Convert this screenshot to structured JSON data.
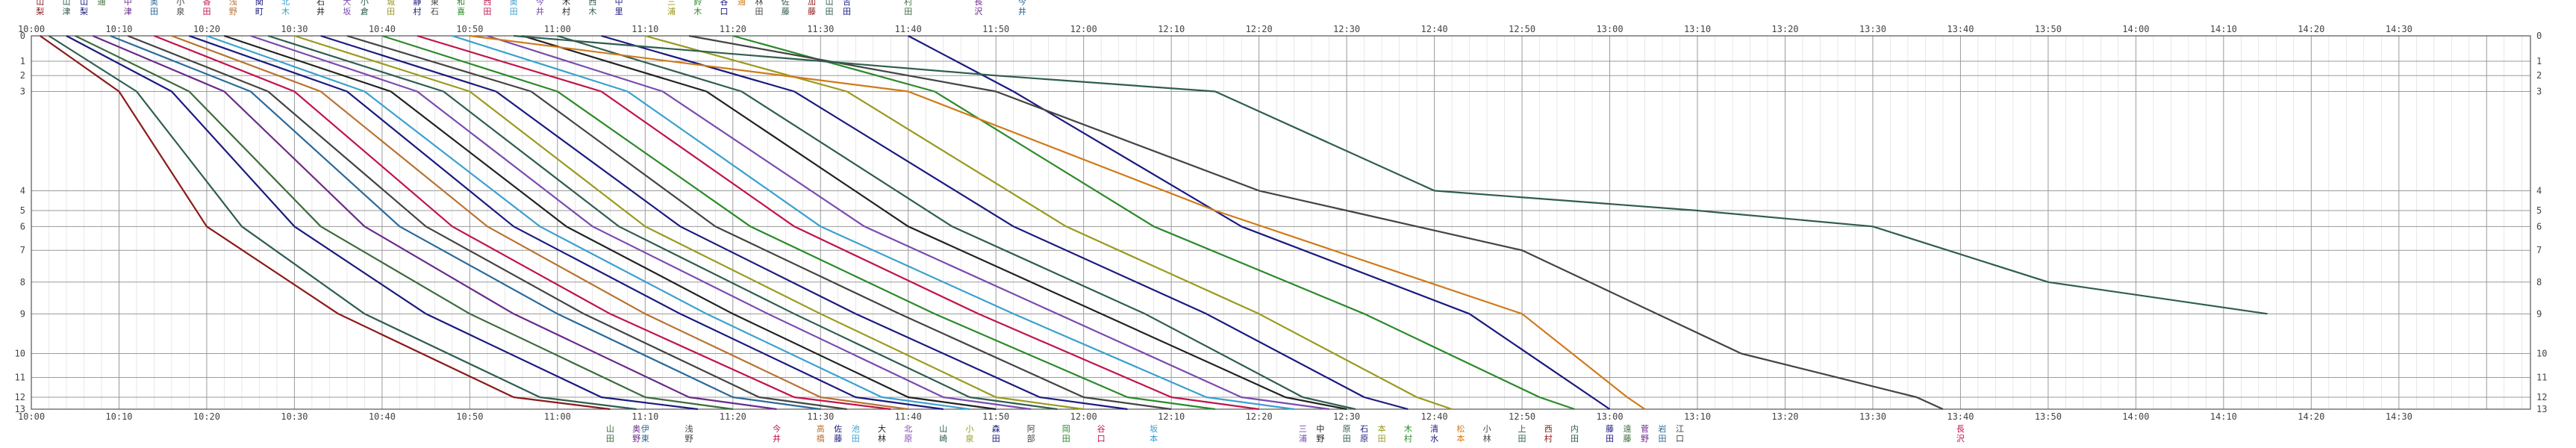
{
  "chart_data": {
    "type": "line",
    "x_axis": {
      "start": "10:00",
      "end": "14:45",
      "major_step_min": 10,
      "minor_step_min": 2,
      "tick_labels": [
        "10:00",
        "10:10",
        "10:20",
        "10:30",
        "10:40",
        "10:50",
        "11:00",
        "11:10",
        "11:20",
        "11:30",
        "11:40",
        "11:50",
        "12:00",
        "12:10",
        "12:20",
        "12:30",
        "12:40",
        "12:50",
        "13:00",
        "13:10",
        "13:20",
        "13:30",
        "13:40",
        "13:50",
        "14:00",
        "14:10",
        "14:20",
        "14:30"
      ]
    },
    "stations": [
      "0",
      "1",
      "2",
      "3",
      "4",
      "5",
      "6",
      "7",
      "8",
      "9",
      "10",
      "11",
      "12",
      "13"
    ],
    "station_km": [
      0,
      3.2,
      5.0,
      7.0,
      19.5,
      22.0,
      24.0,
      27.0,
      31.0,
      35.0,
      40.0,
      43.0,
      45.5,
      47.0
    ],
    "grid": true,
    "series": [
      {
        "color": "#8b1a1a",
        "points": [
          [
            "10:01",
            0
          ],
          [
            "10:10",
            3
          ],
          [
            "10:20",
            6
          ],
          [
            "10:35",
            9
          ],
          [
            "10:55",
            12
          ],
          [
            "11:06",
            13
          ]
        ]
      },
      {
        "color": "#2f5d50",
        "points": [
          [
            "10:02",
            0
          ],
          [
            "10:12",
            3
          ],
          [
            "10:24",
            6
          ],
          [
            "10:38",
            9
          ],
          [
            "10:58",
            12
          ],
          [
            "11:09",
            13
          ]
        ]
      },
      {
        "color": "#1a1a80",
        "points": [
          [
            "10:04",
            0
          ],
          [
            "10:16",
            3
          ],
          [
            "10:30",
            6
          ],
          [
            "10:45",
            9
          ],
          [
            "11:05",
            12
          ],
          [
            "11:16",
            13
          ]
        ]
      },
      {
        "color": "#3d6b3d",
        "points": [
          [
            "10:05",
            0
          ],
          [
            "10:18",
            3
          ],
          [
            "10:33",
            6
          ],
          [
            "10:50",
            9
          ],
          [
            "11:10",
            12
          ],
          [
            "11:20",
            13
          ]
        ]
      },
      {
        "color": "#6a2a8a",
        "points": [
          [
            "10:07",
            0
          ],
          [
            "10:22",
            3
          ],
          [
            "10:38",
            6
          ],
          [
            "10:55",
            9
          ],
          [
            "11:15",
            12
          ],
          [
            "11:25",
            13
          ]
        ]
      },
      {
        "color": "#2a6a9a",
        "points": [
          [
            "10:09",
            0
          ],
          [
            "10:25",
            3
          ],
          [
            "10:42",
            6
          ],
          [
            "11:00",
            9
          ],
          [
            "11:20",
            12
          ],
          [
            "11:30",
            13
          ]
        ]
      },
      {
        "color": "#444444",
        "points": [
          [
            "10:11",
            0
          ],
          [
            "10:27",
            3
          ],
          [
            "10:45",
            6
          ],
          [
            "11:03",
            9
          ],
          [
            "11:23",
            12
          ],
          [
            "11:33",
            13
          ]
        ]
      },
      {
        "color": "#c0144a",
        "points": [
          [
            "10:14",
            0
          ],
          [
            "10:30",
            3
          ],
          [
            "10:48",
            6
          ],
          [
            "11:06",
            9
          ],
          [
            "11:27",
            12
          ],
          [
            "11:38",
            13
          ]
        ]
      },
      {
        "color": "#b87333",
        "points": [
          [
            "10:16",
            0
          ],
          [
            "10:33",
            3
          ],
          [
            "10:52",
            6
          ],
          [
            "11:10",
            9
          ],
          [
            "11:30",
            12
          ],
          [
            "11:40",
            13
          ]
        ]
      },
      {
        "color": "#1a1a80",
        "points": [
          [
            "10:18",
            0
          ],
          [
            "10:36",
            3
          ],
          [
            "10:55",
            6
          ],
          [
            "11:14",
            9
          ],
          [
            "11:34",
            12
          ],
          [
            "11:44",
            13
          ]
        ]
      },
      {
        "color": "#3aa0d0",
        "points": [
          [
            "10:20",
            0
          ],
          [
            "10:38",
            3
          ],
          [
            "10:58",
            6
          ],
          [
            "11:17",
            9
          ],
          [
            "11:37",
            12
          ],
          [
            "11:47",
            13
          ]
        ]
      },
      {
        "color": "#222222",
        "points": [
          [
            "10:22",
            0
          ],
          [
            "10:41",
            3
          ],
          [
            "11:01",
            6
          ],
          [
            "11:20",
            9
          ],
          [
            "11:40",
            12
          ],
          [
            "11:50",
            13
          ]
        ]
      },
      {
        "color": "#7a4ab0",
        "points": [
          [
            "10:25",
            0
          ],
          [
            "10:44",
            3
          ],
          [
            "11:04",
            6
          ],
          [
            "11:24",
            9
          ],
          [
            "11:44",
            12
          ],
          [
            "11:54",
            13
          ]
        ]
      },
      {
        "color": "#2f5d50",
        "points": [
          [
            "10:27",
            0
          ],
          [
            "10:47",
            3
          ],
          [
            "11:07",
            6
          ],
          [
            "11:27",
            9
          ],
          [
            "11:47",
            12
          ],
          [
            "11:57",
            13
          ]
        ]
      },
      {
        "color": "#9a9a20",
        "points": [
          [
            "10:30",
            0
          ],
          [
            "10:50",
            3
          ],
          [
            "11:10",
            6
          ],
          [
            "11:30",
            9
          ],
          [
            "11:50",
            12
          ],
          [
            "12:00",
            13
          ]
        ]
      },
      {
        "color": "#1a1a80",
        "points": [
          [
            "10:33",
            0
          ],
          [
            "10:53",
            3
          ],
          [
            "11:14",
            6
          ],
          [
            "11:34",
            9
          ],
          [
            "11:55",
            12
          ],
          [
            "12:05",
            13
          ]
        ]
      },
      {
        "color": "#444444",
        "points": [
          [
            "10:36",
            0
          ],
          [
            "10:57",
            3
          ],
          [
            "11:18",
            6
          ],
          [
            "11:39",
            9
          ],
          [
            "12:00",
            12
          ],
          [
            "12:10",
            13
          ]
        ]
      },
      {
        "color": "#2a8a2a",
        "points": [
          [
            "10:40",
            0
          ],
          [
            "11:00",
            3
          ],
          [
            "11:22",
            6
          ],
          [
            "11:43",
            9
          ],
          [
            "12:05",
            12
          ],
          [
            "12:15",
            13
          ]
        ]
      },
      {
        "color": "#c0144a",
        "points": [
          [
            "10:44",
            0
          ],
          [
            "11:05",
            3
          ],
          [
            "11:27",
            6
          ],
          [
            "11:48",
            9
          ],
          [
            "12:10",
            12
          ],
          [
            "12:20",
            13
          ]
        ]
      },
      {
        "color": "#3aa0d0",
        "points": [
          [
            "10:48",
            0
          ],
          [
            "11:08",
            3
          ],
          [
            "11:30",
            6
          ],
          [
            "11:52",
            9
          ],
          [
            "12:14",
            12
          ],
          [
            "12:24",
            13
          ]
        ]
      },
      {
        "color": "#7a4ab0",
        "points": [
          [
            "10:52",
            0
          ],
          [
            "11:12",
            3
          ],
          [
            "11:35",
            6
          ],
          [
            "11:57",
            9
          ],
          [
            "12:18",
            12
          ],
          [
            "12:28",
            13
          ]
        ]
      },
      {
        "color": "#222222",
        "points": [
          [
            "10:56",
            0
          ],
          [
            "11:17",
            3
          ],
          [
            "11:40",
            6
          ],
          [
            "12:02",
            9
          ],
          [
            "12:23",
            12
          ],
          [
            "12:30",
            13
          ]
        ]
      },
      {
        "color": "#2f5d50",
        "points": [
          [
            "11:00",
            0
          ],
          [
            "11:21",
            3
          ],
          [
            "11:45",
            6
          ],
          [
            "12:07",
            9
          ],
          [
            "12:25",
            12
          ],
          [
            "12:31",
            13
          ]
        ]
      },
      {
        "color": "#1a1a80",
        "points": [
          [
            "11:05",
            0
          ],
          [
            "11:27",
            3
          ],
          [
            "11:52",
            6
          ],
          [
            "12:14",
            9
          ],
          [
            "12:32",
            12
          ],
          [
            "12:37",
            13
          ]
        ]
      },
      {
        "color": "#9a9a20",
        "points": [
          [
            "11:10",
            0
          ],
          [
            "11:33",
            3
          ],
          [
            "11:58",
            6
          ],
          [
            "12:20",
            9
          ],
          [
            "12:38",
            12
          ],
          [
            "12:42",
            13
          ]
        ]
      },
      {
        "color": "#2a8a2a",
        "points": [
          [
            "11:20",
            0
          ],
          [
            "11:43",
            3
          ],
          [
            "12:08",
            6
          ],
          [
            "12:32",
            9
          ],
          [
            "12:52",
            12
          ],
          [
            "12:56",
            13
          ]
        ]
      },
      {
        "color": "#1a1a80",
        "points": [
          [
            "11:40",
            0
          ],
          [
            "11:52",
            3
          ],
          [
            "12:18",
            6
          ],
          [
            "12:44",
            9
          ],
          [
            "12:58",
            12
          ],
          [
            "13:00",
            13
          ]
        ]
      },
      {
        "color": "#d07a1a",
        "points": [
          [
            "10:50",
            0
          ],
          [
            "11:40",
            3
          ],
          [
            "12:15",
            5
          ],
          [
            "12:50",
            9
          ],
          [
            "13:02",
            12
          ],
          [
            "13:04",
            13
          ]
        ]
      },
      {
        "color": "#444444",
        "points": [
          [
            "11:15",
            0
          ],
          [
            "11:50",
            3
          ],
          [
            "12:20",
            4
          ],
          [
            "12:30",
            5
          ],
          [
            "12:50",
            7
          ],
          [
            "13:15",
            10
          ],
          [
            "13:35",
            12
          ],
          [
            "13:38",
            13
          ]
        ]
      },
      {
        "color": "#2f5d50",
        "points": [
          [
            "10:55",
            0
          ],
          [
            "11:50",
            2
          ],
          [
            "12:15",
            3
          ],
          [
            "12:40",
            4
          ],
          [
            "13:10",
            5
          ],
          [
            "13:30",
            6
          ],
          [
            "13:50",
            8
          ],
          [
            "14:15",
            9
          ]
        ]
      }
    ]
  },
  "top_labels": [
    {
      "time": "10:01",
      "text": "山梨"
    },
    {
      "time": "10:04",
      "text": "山津"
    },
    {
      "time": "10:06",
      "text": "山梨"
    },
    {
      "time": "10:08",
      "text": "通"
    },
    {
      "time": "10:11",
      "text": "中津"
    },
    {
      "time": "10:14",
      "text": "奥田"
    },
    {
      "time": "10:17",
      "text": "小泉"
    },
    {
      "time": "10:20",
      "text": "香田"
    },
    {
      "time": "10:23",
      "text": "浅野"
    },
    {
      "time": "10:26",
      "text": "関町"
    },
    {
      "time": "10:29",
      "text": "北木"
    },
    {
      "time": "10:33",
      "text": "石井"
    },
    {
      "time": "10:36",
      "text": "大坂"
    },
    {
      "time": "10:38",
      "text": "小倉"
    },
    {
      "time": "10:41",
      "text": "城田"
    },
    {
      "time": "10:44",
      "text": "静村"
    },
    {
      "time": "10:46",
      "text": "東石"
    },
    {
      "time": "10:49",
      "text": "和喜"
    },
    {
      "time": "10:52",
      "text": "西田"
    },
    {
      "time": "10:55",
      "text": "奥田"
    },
    {
      "time": "10:58",
      "text": "今井"
    },
    {
      "time": "11:01",
      "text": "木村"
    },
    {
      "time": "11:04",
      "text": "西木"
    },
    {
      "time": "11:07",
      "text": "中里"
    },
    {
      "time": "11:13",
      "text": "三浦"
    },
    {
      "time": "11:16",
      "text": "鈴木"
    },
    {
      "time": "11:19",
      "text": "谷口"
    },
    {
      "time": "11:21",
      "text": "通"
    },
    {
      "time": "11:23",
      "text": "林田"
    },
    {
      "time": "11:26",
      "text": "佐藤"
    },
    {
      "time": "11:29",
      "text": "加藤"
    },
    {
      "time": "11:31",
      "text": "山田"
    },
    {
      "time": "11:33",
      "text": "吉田"
    },
    {
      "time": "11:40",
      "text": "村田"
    },
    {
      "time": "11:48",
      "text": "長沢"
    },
    {
      "time": "11:53",
      "text": "今井"
    }
  ],
  "bottom_labels": [
    {
      "time": "11:06",
      "text": "山田"
    },
    {
      "time": "11:09",
      "text": "奥野"
    },
    {
      "time": "11:10",
      "text": "伊東"
    },
    {
      "time": "11:15",
      "text": "浅野"
    },
    {
      "time": "11:25",
      "text": "今井"
    },
    {
      "time": "11:30",
      "text": "高橋"
    },
    {
      "time": "11:32",
      "text": "佐藤"
    },
    {
      "time": "11:34",
      "text": "池田"
    },
    {
      "time": "11:37",
      "text": "大林"
    },
    {
      "time": "11:40",
      "text": "北原"
    },
    {
      "time": "11:44",
      "text": "山崎"
    },
    {
      "time": "11:47",
      "text": "小泉"
    },
    {
      "time": "11:50",
      "text": "森田"
    },
    {
      "time": "11:54",
      "text": "阿部"
    },
    {
      "time": "11:58",
      "text": "岡田"
    },
    {
      "time": "12:02",
      "text": "谷口"
    },
    {
      "time": "12:08",
      "text": "坂本"
    },
    {
      "time": "12:25",
      "text": "三浦"
    },
    {
      "time": "12:27",
      "text": "中野"
    },
    {
      "time": "12:30",
      "text": "原田"
    },
    {
      "time": "12:32",
      "text": "石原"
    },
    {
      "time": "12:34",
      "text": "本田"
    },
    {
      "time": "12:37",
      "text": "木村"
    },
    {
      "time": "12:40",
      "text": "清水"
    },
    {
      "time": "12:43",
      "text": "松本"
    },
    {
      "time": "12:46",
      "text": "小林"
    },
    {
      "time": "12:50",
      "text": "上田"
    },
    {
      "time": "12:53",
      "text": "西村"
    },
    {
      "time": "12:56",
      "text": "内田"
    },
    {
      "time": "13:00",
      "text": "藤田"
    },
    {
      "time": "13:02",
      "text": "遠藤"
    },
    {
      "time": "13:04",
      "text": "菅野"
    },
    {
      "time": "13:06",
      "text": "岩田"
    },
    {
      "time": "13:08",
      "text": "江口"
    },
    {
      "time": "13:40",
      "text": "長沢"
    }
  ]
}
